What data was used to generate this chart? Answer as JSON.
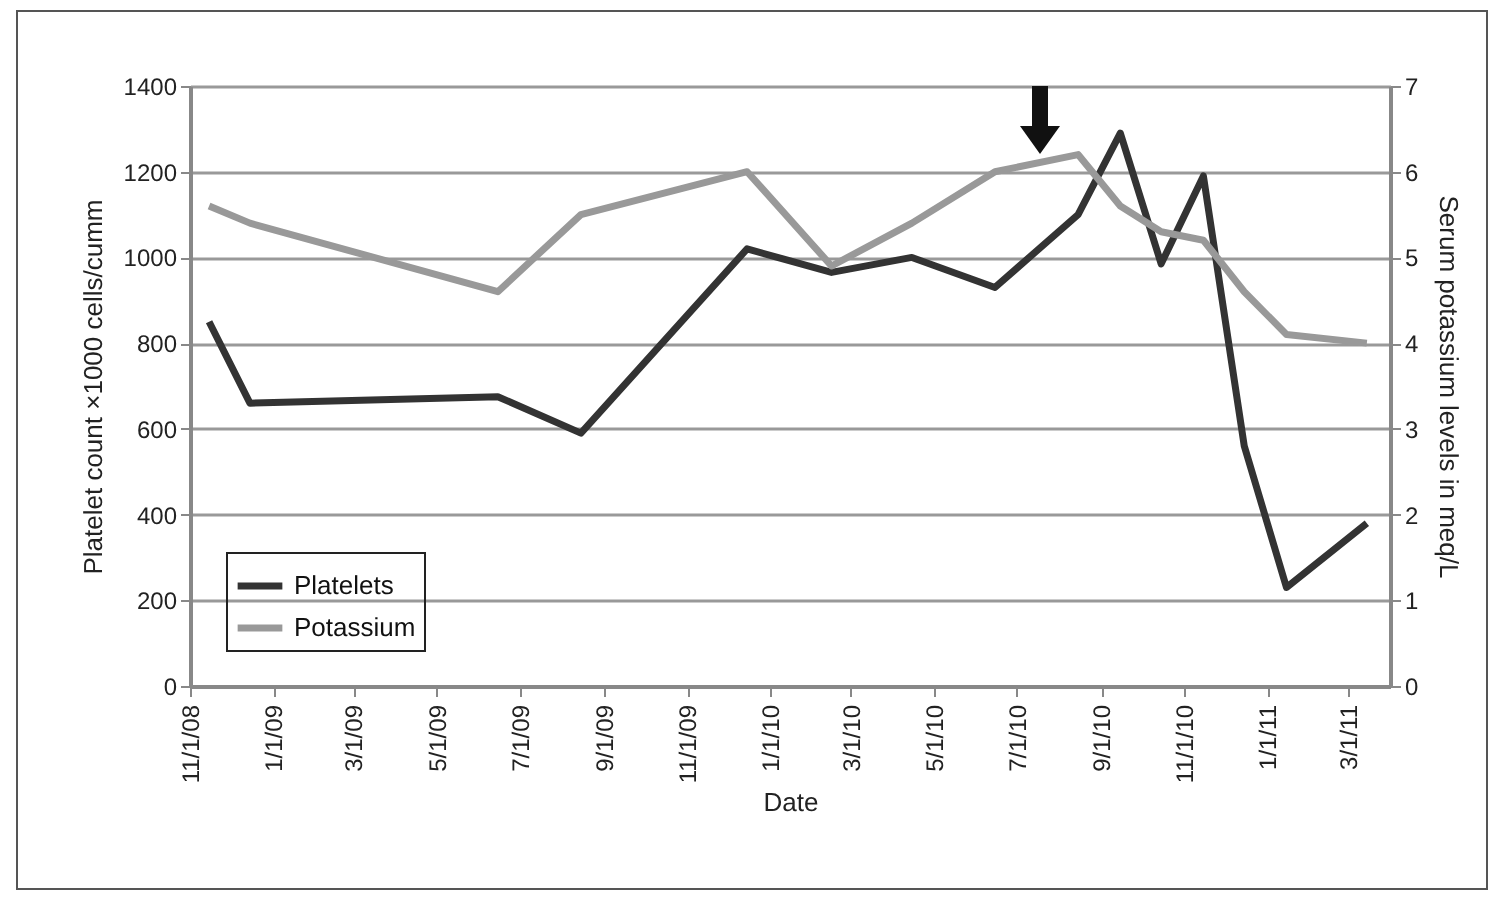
{
  "chart_data": {
    "type": "line",
    "xlabel": "Date",
    "ylabel": "Platelet count ×1000 cells/cumm",
    "y2label": "Serum potassium levels in meq/L",
    "series": [
      {
        "name": "Platelets",
        "color": "#333333",
        "x": [
          "2008-11-15",
          "2008-12-15",
          "2009-06-15",
          "2009-08-15",
          "2009-12-15",
          "2010-02-15",
          "2010-04-15",
          "2010-06-15",
          "2010-08-15",
          "2010-09-15",
          "2010-10-15",
          "2010-11-15",
          "2010-12-15",
          "2011-01-15",
          "2011-03-15"
        ],
        "values": [
          850,
          660,
          675,
          590,
          1020,
          965,
          1000,
          930,
          1100,
          1290,
          985,
          1190,
          560,
          230,
          380
        ]
      },
      {
        "name": "Potassium",
        "color": "#999999",
        "axis": "y2",
        "x": [
          "2008-11-15",
          "2008-12-15",
          "2009-06-15",
          "2009-08-15",
          "2009-12-15",
          "2010-02-15",
          "2010-04-15",
          "2010-06-15",
          "2010-08-15",
          "2010-09-15",
          "2010-10-15",
          "2010-11-15",
          "2010-12-15",
          "2011-01-15",
          "2011-03-15"
        ],
        "values": [
          5.6,
          5.4,
          4.6,
          5.5,
          6.0,
          4.9,
          5.4,
          6.0,
          6.2,
          5.6,
          5.3,
          5.2,
          4.6,
          4.1,
          4.0
        ]
      }
    ],
    "xlim": [
      "2008-11-01",
      "2011-04-01"
    ],
    "xticks": [
      {
        "value": "2008-11-01",
        "label": "11/1/08"
      },
      {
        "value": "2009-01-01",
        "label": "1/1/09"
      },
      {
        "value": "2009-03-01",
        "label": "3/1/09"
      },
      {
        "value": "2009-05-01",
        "label": "5/1/09"
      },
      {
        "value": "2009-07-01",
        "label": "7/1/09"
      },
      {
        "value": "2009-09-01",
        "label": "9/1/09"
      },
      {
        "value": "2009-11-01",
        "label": "11/1/09"
      },
      {
        "value": "2010-01-01",
        "label": "1/1/10"
      },
      {
        "value": "2010-03-01",
        "label": "3/1/10"
      },
      {
        "value": "2010-05-01",
        "label": "5/1/10"
      },
      {
        "value": "2010-07-01",
        "label": "7/1/10"
      },
      {
        "value": "2010-09-01",
        "label": "9/1/10"
      },
      {
        "value": "2010-11-01",
        "label": "11/1/10"
      },
      {
        "value": "2011-01-01",
        "label": "1/1/11"
      },
      {
        "value": "2011-03-01",
        "label": "3/1/11"
      }
    ],
    "ylim": [
      0,
      1400
    ],
    "yticks": [
      0,
      200,
      400,
      600,
      800,
      1000,
      1200,
      1400
    ],
    "y2lim": [
      0,
      7
    ],
    "y2ticks": [
      0,
      1,
      2,
      3,
      4,
      5,
      6,
      7
    ],
    "grid": "y",
    "legend": "bottom left",
    "marker": "none",
    "line_style": "solid"
  }
}
